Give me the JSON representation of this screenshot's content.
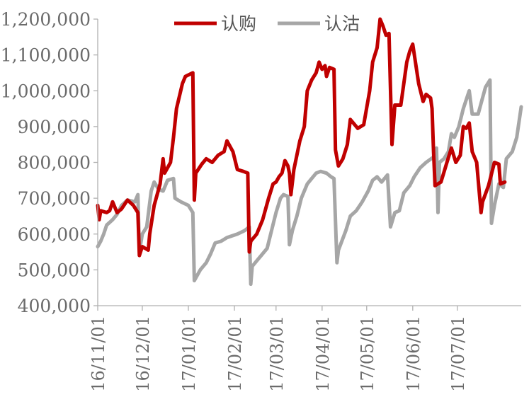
{
  "chart_data": {
    "type": "line",
    "x_ticks": [
      "16/11/01",
      "16/12/01",
      "17/01/01",
      "17/02/01",
      "17/03/01",
      "17/04/01",
      "17/05/01",
      "17/06/01",
      "17/07/01"
    ],
    "y_tick_labels": [
      "1,200,000",
      "1,100,000",
      "1,000,000",
      "900,000",
      "800,000",
      "700,000",
      "600,000",
      "500,000",
      "400,000"
    ],
    "ylim": [
      400000,
      1200000
    ],
    "legend_position": "top",
    "grid": false,
    "series": [
      {
        "name": "认购",
        "color": "#C00000",
        "points": [
          [
            "2016-11-01",
            680000
          ],
          [
            "2016-11-02",
            640000
          ],
          [
            "2016-11-03",
            665000
          ],
          [
            "2016-11-07",
            660000
          ],
          [
            "2016-11-09",
            665000
          ],
          [
            "2016-11-11",
            690000
          ],
          [
            "2016-11-14",
            660000
          ],
          [
            "2016-11-17",
            670000
          ],
          [
            "2016-11-21",
            695000
          ],
          [
            "2016-11-25",
            680000
          ],
          [
            "2016-11-28",
            660000
          ],
          [
            "2016-11-29",
            540000
          ],
          [
            "2016-12-01",
            565000
          ],
          [
            "2016-12-05",
            555000
          ],
          [
            "2016-12-06",
            600000
          ],
          [
            "2016-12-09",
            680000
          ],
          [
            "2016-12-13",
            740000
          ],
          [
            "2016-12-15",
            810000
          ],
          [
            "2016-12-16",
            770000
          ],
          [
            "2016-12-20",
            800000
          ],
          [
            "2016-12-22",
            870000
          ],
          [
            "2016-12-24",
            950000
          ],
          [
            "2016-12-28",
            1020000
          ],
          [
            "2016-12-30",
            1040000
          ],
          [
            "2017-01-04",
            1050000
          ],
          [
            "2017-01-05",
            695000
          ],
          [
            "2017-01-06",
            770000
          ],
          [
            "2017-01-10",
            795000
          ],
          [
            "2017-01-13",
            810000
          ],
          [
            "2017-01-17",
            800000
          ],
          [
            "2017-01-21",
            820000
          ],
          [
            "2017-01-25",
            830000
          ],
          [
            "2017-01-27",
            860000
          ],
          [
            "2017-01-31",
            830000
          ],
          [
            "2017-02-03",
            780000
          ],
          [
            "2017-02-07",
            775000
          ],
          [
            "2017-02-10",
            770000
          ],
          [
            "2017-02-11",
            550000
          ],
          [
            "2017-02-12",
            580000
          ],
          [
            "2017-02-16",
            600000
          ],
          [
            "2017-02-20",
            640000
          ],
          [
            "2017-02-24",
            700000
          ],
          [
            "2017-02-27",
            740000
          ],
          [
            "2017-03-01",
            745000
          ],
          [
            "2017-03-03",
            760000
          ],
          [
            "2017-03-05",
            770000
          ],
          [
            "2017-03-07",
            805000
          ],
          [
            "2017-03-09",
            790000
          ],
          [
            "2017-03-10",
            770000
          ],
          [
            "2017-03-11",
            710000
          ],
          [
            "2017-03-13",
            780000
          ],
          [
            "2017-03-17",
            860000
          ],
          [
            "2017-03-20",
            900000
          ],
          [
            "2017-03-22",
            1000000
          ],
          [
            "2017-03-25",
            1030000
          ],
          [
            "2017-03-28",
            1050000
          ],
          [
            "2017-03-30",
            1080000
          ],
          [
            "2017-04-01",
            1060000
          ],
          [
            "2017-04-03",
            1070000
          ],
          [
            "2017-04-04",
            1040000
          ],
          [
            "2017-04-06",
            1065000
          ],
          [
            "2017-04-09",
            1060000
          ],
          [
            "2017-04-10",
            835000
          ],
          [
            "2017-04-12",
            790000
          ],
          [
            "2017-04-15",
            810000
          ],
          [
            "2017-04-18",
            850000
          ],
          [
            "2017-04-20",
            920000
          ],
          [
            "2017-04-25",
            895000
          ],
          [
            "2017-04-29",
            905000
          ],
          [
            "2017-05-03",
            1000000
          ],
          [
            "2017-05-05",
            1080000
          ],
          [
            "2017-05-08",
            1120000
          ],
          [
            "2017-05-10",
            1200000
          ],
          [
            "2017-05-12",
            1180000
          ],
          [
            "2017-05-14",
            1155000
          ],
          [
            "2017-05-16",
            1160000
          ],
          [
            "2017-05-18",
            850000
          ],
          [
            "2017-05-20",
            960000
          ],
          [
            "2017-05-24",
            960000
          ],
          [
            "2017-05-28",
            1080000
          ],
          [
            "2017-05-30",
            1110000
          ],
          [
            "2017-06-01",
            1130000
          ],
          [
            "2017-06-05",
            1020000
          ],
          [
            "2017-06-08",
            970000
          ],
          [
            "2017-06-10",
            990000
          ],
          [
            "2017-06-13",
            980000
          ],
          [
            "2017-06-14",
            950000
          ],
          [
            "2017-06-15",
            830000
          ],
          [
            "2017-06-16",
            735000
          ],
          [
            "2017-06-20",
            745000
          ],
          [
            "2017-06-24",
            800000
          ],
          [
            "2017-06-27",
            840000
          ],
          [
            "2017-06-30",
            800000
          ],
          [
            "2017-07-03",
            820000
          ],
          [
            "2017-07-05",
            900000
          ],
          [
            "2017-07-07",
            895000
          ],
          [
            "2017-07-09",
            910000
          ],
          [
            "2017-07-11",
            830000
          ],
          [
            "2017-07-14",
            800000
          ],
          [
            "2017-07-17",
            660000
          ],
          [
            "2017-07-18",
            690000
          ],
          [
            "2017-07-22",
            735000
          ],
          [
            "2017-07-26",
            800000
          ],
          [
            "2017-07-29",
            795000
          ],
          [
            "2017-07-30",
            740000
          ],
          [
            "2017-08-02",
            745000
          ]
        ]
      },
      {
        "name": "认沽",
        "color": "#A6A6A6",
        "points": [
          [
            "2016-11-01",
            565000
          ],
          [
            "2016-11-03",
            580000
          ],
          [
            "2016-11-05",
            600000
          ],
          [
            "2016-11-07",
            625000
          ],
          [
            "2016-11-11",
            640000
          ],
          [
            "2016-11-14",
            655000
          ],
          [
            "2016-11-17",
            680000
          ],
          [
            "2016-11-21",
            695000
          ],
          [
            "2016-11-26",
            690000
          ],
          [
            "2016-11-28",
            710000
          ],
          [
            "2016-11-29",
            550000
          ],
          [
            "2016-12-01",
            600000
          ],
          [
            "2016-12-04",
            620000
          ],
          [
            "2016-12-07",
            720000
          ],
          [
            "2016-12-09",
            745000
          ],
          [
            "2016-12-12",
            725000
          ],
          [
            "2016-12-15",
            720000
          ],
          [
            "2016-12-18",
            750000
          ],
          [
            "2016-12-22",
            755000
          ],
          [
            "2016-12-23",
            700000
          ],
          [
            "2016-12-27",
            690000
          ],
          [
            "2017-01-01",
            680000
          ],
          [
            "2017-01-04",
            660000
          ],
          [
            "2017-01-05",
            470000
          ],
          [
            "2017-01-09",
            500000
          ],
          [
            "2017-01-13",
            520000
          ],
          [
            "2017-01-16",
            545000
          ],
          [
            "2017-01-19",
            575000
          ],
          [
            "2017-01-23",
            580000
          ],
          [
            "2017-01-27",
            590000
          ],
          [
            "2017-02-03",
            600000
          ],
          [
            "2017-02-08",
            610000
          ],
          [
            "2017-02-11",
            620000
          ],
          [
            "2017-02-12",
            460000
          ],
          [
            "2017-02-13",
            510000
          ],
          [
            "2017-02-16",
            525000
          ],
          [
            "2017-02-19",
            540000
          ],
          [
            "2017-02-23",
            560000
          ],
          [
            "2017-02-26",
            610000
          ],
          [
            "2017-03-01",
            660000
          ],
          [
            "2017-03-04",
            700000
          ],
          [
            "2017-03-06",
            710000
          ],
          [
            "2017-03-09",
            705000
          ],
          [
            "2017-03-10",
            570000
          ],
          [
            "2017-03-12",
            610000
          ],
          [
            "2017-03-15",
            650000
          ],
          [
            "2017-03-18",
            700000
          ],
          [
            "2017-03-22",
            740000
          ],
          [
            "2017-03-25",
            755000
          ],
          [
            "2017-03-28",
            770000
          ],
          [
            "2017-03-31",
            775000
          ],
          [
            "2017-04-04",
            770000
          ],
          [
            "2017-04-07",
            760000
          ],
          [
            "2017-04-09",
            755000
          ],
          [
            "2017-04-11",
            520000
          ],
          [
            "2017-04-12",
            555000
          ],
          [
            "2017-04-17",
            610000
          ],
          [
            "2017-04-20",
            650000
          ],
          [
            "2017-04-24",
            665000
          ],
          [
            "2017-04-28",
            690000
          ],
          [
            "2017-05-02",
            720000
          ],
          [
            "2017-05-05",
            750000
          ],
          [
            "2017-05-08",
            760000
          ],
          [
            "2017-05-11",
            745000
          ],
          [
            "2017-05-15",
            765000
          ],
          [
            "2017-05-17",
            620000
          ],
          [
            "2017-05-20",
            660000
          ],
          [
            "2017-05-23",
            665000
          ],
          [
            "2017-05-26",
            715000
          ],
          [
            "2017-05-30",
            735000
          ],
          [
            "2017-06-02",
            760000
          ],
          [
            "2017-06-06",
            785000
          ],
          [
            "2017-06-10",
            800000
          ],
          [
            "2017-06-15",
            815000
          ],
          [
            "2017-06-17",
            840000
          ],
          [
            "2017-06-18",
            660000
          ],
          [
            "2017-06-19",
            800000
          ],
          [
            "2017-06-22",
            810000
          ],
          [
            "2017-06-25",
            830000
          ],
          [
            "2017-06-27",
            880000
          ],
          [
            "2017-06-29",
            870000
          ],
          [
            "2017-07-02",
            900000
          ],
          [
            "2017-07-05",
            950000
          ],
          [
            "2017-07-07",
            975000
          ],
          [
            "2017-07-09",
            1000000
          ],
          [
            "2017-07-11",
            935000
          ],
          [
            "2017-07-15",
            935000
          ],
          [
            "2017-07-18",
            980000
          ],
          [
            "2017-07-20",
            1010000
          ],
          [
            "2017-07-23",
            1030000
          ],
          [
            "2017-07-24",
            630000
          ],
          [
            "2017-07-26",
            680000
          ],
          [
            "2017-07-29",
            740000
          ],
          [
            "2017-08-01",
            730000
          ],
          [
            "2017-08-03",
            810000
          ],
          [
            "2017-08-07",
            830000
          ],
          [
            "2017-08-10",
            870000
          ],
          [
            "2017-08-13",
            955000
          ]
        ]
      }
    ]
  }
}
